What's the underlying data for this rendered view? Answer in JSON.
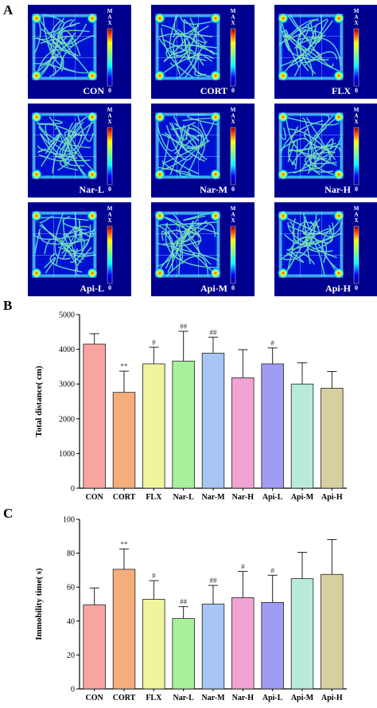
{
  "panel_a": {
    "label": "A",
    "scale_max": "MAX",
    "scale_min": "0",
    "tiles": [
      {
        "group": "CON"
      },
      {
        "group": "CORT"
      },
      {
        "group": "FLX"
      },
      {
        "group": "Nar-L"
      },
      {
        "group": "Nar-M"
      },
      {
        "group": "Nar-H"
      },
      {
        "group": "Api-L"
      },
      {
        "group": "Api-M"
      },
      {
        "group": "Api-H"
      }
    ]
  },
  "chart_data": [
    {
      "panel": "B",
      "type": "bar",
      "ylabel": "Total distance( cm)",
      "ylim": [
        0,
        5000
      ],
      "yticks": [
        0,
        1000,
        2000,
        3000,
        4000,
        5000
      ],
      "categories": [
        "CON",
        "CORT",
        "FLX",
        "Nar-L",
        "Nar-M",
        "Nar-H",
        "Api-L",
        "Api-M",
        "Api-H"
      ],
      "values": [
        4150,
        2760,
        3580,
        3660,
        3890,
        3180,
        3580,
        3000,
        2880
      ],
      "errors": [
        300,
        610,
        480,
        860,
        460,
        810,
        460,
        610,
        480
      ],
      "annotations": [
        "",
        "**",
        "#",
        "##",
        "##",
        "",
        "#",
        "",
        ""
      ],
      "colors": [
        "#f8a5a0",
        "#f5ad7c",
        "#eef59c",
        "#a9f09a",
        "#a7c6f5",
        "#f1a3d3",
        "#a09bf3",
        "#b8ecd8",
        "#d7cf9f"
      ]
    },
    {
      "panel": "C",
      "type": "bar",
      "ylabel": "Immobility time( s)",
      "ylim": [
        0,
        100
      ],
      "yticks": [
        0,
        20,
        40,
        60,
        80,
        100
      ],
      "categories": [
        "CON",
        "CORT",
        "FLX",
        "Nar-L",
        "Nar-M",
        "Nar-H",
        "Api-L",
        "Api-M",
        "Api-H"
      ],
      "values": [
        49.5,
        70.5,
        52.8,
        41.5,
        50,
        53.8,
        51,
        65,
        67.5
      ],
      "errors": [
        10,
        12,
        11,
        7,
        11,
        15.5,
        16,
        15.5,
        20.5
      ],
      "annotations": [
        "",
        "**",
        "#",
        "##",
        "##",
        "#",
        "#",
        "",
        ""
      ],
      "colors": [
        "#f8a5a0",
        "#f5ad7c",
        "#eef59c",
        "#a9f09a",
        "#a7c6f5",
        "#f1a3d3",
        "#a09bf3",
        "#b8ecd8",
        "#d7cf9f"
      ]
    }
  ]
}
